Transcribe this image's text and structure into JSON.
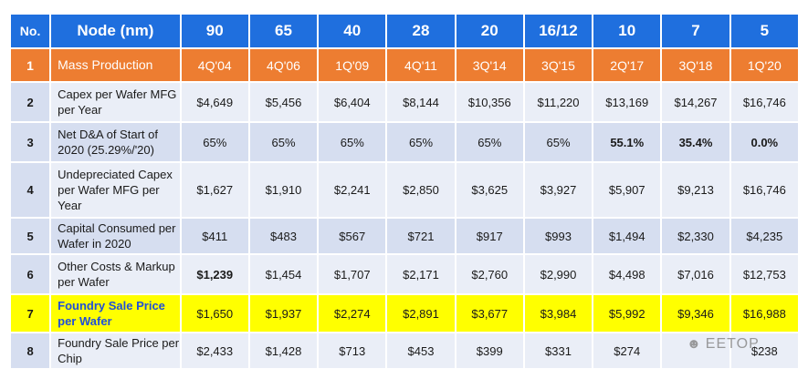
{
  "header": {
    "no": "No.",
    "node": "Node (nm)",
    "nodes": [
      "90",
      "65",
      "40",
      "28",
      "20",
      "16/12",
      "10",
      "7",
      "5"
    ]
  },
  "rows": [
    {
      "no": "1",
      "label": "Mass Production",
      "values": [
        "4Q'04",
        "4Q'06",
        "1Q'09",
        "4Q'11",
        "3Q'14",
        "3Q'15",
        "2Q'17",
        "3Q'18",
        "1Q'20"
      ]
    },
    {
      "no": "2",
      "label": "Capex per Wafer MFG per Year",
      "values": [
        "$4,649",
        "$5,456",
        "$6,404",
        "$8,144",
        "$10,356",
        "$11,220",
        "$13,169",
        "$14,267",
        "$16,746"
      ]
    },
    {
      "no": "3",
      "label": "Net D&A of Start of 2020 (25.29%/'20)",
      "values": [
        "65%",
        "65%",
        "65%",
        "65%",
        "65%",
        "65%",
        "55.1%",
        "35.4%",
        "0.0%"
      ]
    },
    {
      "no": "4",
      "label": "Undepreciated Capex per Wafer MFG per Year",
      "values": [
        "$1,627",
        "$1,910",
        "$2,241",
        "$2,850",
        "$3,625",
        "$3,927",
        "$5,907",
        "$9,213",
        "$16,746"
      ]
    },
    {
      "no": "5",
      "label": "Capital Consumed per Wafer in 2020",
      "values": [
        "$411",
        "$483",
        "$567",
        "$721",
        "$917",
        "$993",
        "$1,494",
        "$2,330",
        "$4,235"
      ]
    },
    {
      "no": "6",
      "label": "Other Costs & Markup per Wafer",
      "values": [
        "$1,239",
        "$1,454",
        "$1,707",
        "$2,171",
        "$2,760",
        "$2,990",
        "$4,498",
        "$7,016",
        "$12,753"
      ]
    },
    {
      "no": "7",
      "label": "Foundry Sale Price per Wafer",
      "values": [
        "$1,650",
        "$1,937",
        "$2,274",
        "$2,891",
        "$3,677",
        "$3,984",
        "$5,992",
        "$9,346",
        "$16,988"
      ]
    },
    {
      "no": "8",
      "label": "Foundry Sale Price per Chip",
      "values": [
        "$2,433",
        "$1,428",
        "$713",
        "$453",
        "$399",
        "$331",
        "$274",
        "",
        "$238"
      ]
    }
  ],
  "watermark": {
    "text": "EETOP",
    "icon": "wechat-icon"
  },
  "colors": {
    "header_blue": "#1f6fde",
    "orange_row": "#ed7d31",
    "highlight_yellow": "#ffff00",
    "row_light": "#eaeef7",
    "row_dark": "#d6def0"
  }
}
